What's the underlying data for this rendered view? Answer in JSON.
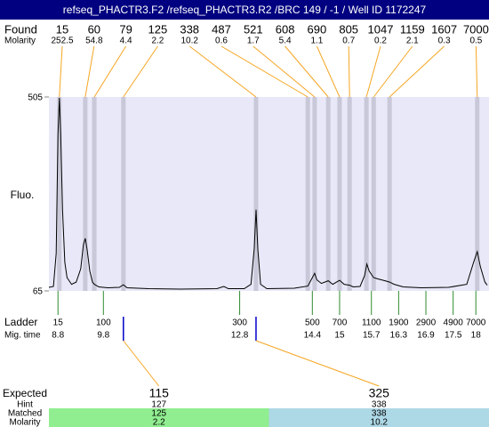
{
  "chart_data": {
    "type": "line",
    "title": "refseq_PHACTR3.F2 /refseq_PHACTR3.R2 /BRC 149 / -1 / Well ID 1172247",
    "found_label": "Found",
    "found_molarity_label": "Molarity",
    "ylabel": "Fluo.",
    "ylim": [
      65,
      505
    ],
    "yticks": [
      65,
      505
    ],
    "xlim": [
      8.6,
      18.25
    ],
    "color": "#000000",
    "x": [
      8.6,
      8.7,
      8.76,
      8.8,
      8.83,
      8.86,
      8.9,
      8.95,
      9.0,
      9.1,
      9.2,
      9.3,
      9.36,
      9.4,
      9.44,
      9.5,
      9.56,
      9.6,
      9.7,
      9.9,
      10.15,
      10.24,
      10.32,
      10.8,
      11.5,
      12.3,
      12.45,
      12.55,
      12.9,
      13.05,
      13.12,
      13.16,
      13.2,
      13.26,
      13.4,
      14.0,
      14.3,
      14.4,
      14.45,
      14.5,
      14.6,
      14.75,
      14.85,
      14.95,
      15.0,
      15.1,
      15.22,
      15.3,
      15.45,
      15.55,
      15.6,
      15.65,
      15.75,
      15.85,
      16.0,
      16.1,
      16.2,
      16.4,
      16.8,
      17.4,
      17.8,
      17.95,
      18.03,
      18.1,
      18.2,
      18.25
    ],
    "values": [
      73,
      75,
      150,
      420,
      503,
      420,
      250,
      130,
      95,
      80,
      85,
      115,
      170,
      184,
      160,
      110,
      85,
      80,
      74,
      72,
      73,
      79,
      72,
      70,
      69,
      70,
      75,
      70,
      70,
      80,
      160,
      249,
      160,
      80,
      70,
      71,
      76,
      95,
      105,
      90,
      82,
      88,
      80,
      86,
      89,
      80,
      78,
      74,
      75,
      100,
      126,
      110,
      95,
      92,
      88,
      85,
      80,
      74,
      72,
      73,
      80,
      130,
      154,
      120,
      85,
      78
    ],
    "peaks": [
      {
        "size": 15,
        "molarity": 252.5,
        "time": 8.83
      },
      {
        "size": 60,
        "molarity": 54.8,
        "time": 9.4
      },
      {
        "size": 79,
        "molarity": 4.4,
        "time": 9.6
      },
      {
        "size": 125,
        "molarity": 2.2,
        "time": 10.24
      },
      {
        "size": 338,
        "molarity": 10.2,
        "time": 13.16
      },
      {
        "size": 487,
        "molarity": 0.6,
        "time": 14.3
      },
      {
        "size": 521,
        "molarity": 1.7,
        "time": 14.45
      },
      {
        "size": 608,
        "molarity": 5.4,
        "time": 14.75
      },
      {
        "size": 690,
        "molarity": 1.1,
        "time": 15.0
      },
      {
        "size": 805,
        "molarity": 0.7,
        "time": 15.22
      },
      {
        "size": 1047,
        "molarity": 0.2,
        "time": 15.59
      },
      {
        "size": 1159,
        "molarity": 2.1,
        "time": 15.75
      },
      {
        "size": 1607,
        "molarity": 0.3,
        "time": 16.1
      },
      {
        "size": 7000,
        "molarity": 0.5,
        "time": 18.03
      }
    ],
    "ladder_label": "Ladder",
    "mig_time_label": "Mig. time",
    "ladder": [
      {
        "size": 15,
        "time": 8.8
      },
      {
        "size": 100,
        "time": 9.8
      },
      {
        "size": 300,
        "time": 12.8
      },
      {
        "size": 500,
        "time": 14.4
      },
      {
        "size": 700,
        "time": 15
      },
      {
        "size": 1100,
        "time": 15.7
      },
      {
        "size": 1900,
        "time": 16.3
      },
      {
        "size": 2900,
        "time": 16.9
      },
      {
        "size": 4900,
        "time": 17.5
      },
      {
        "size": 7000,
        "time": 18
      }
    ],
    "expected": {
      "header": "Expected",
      "hint_label": "Hint",
      "matched_label": "Matched",
      "molarity_label": "Molarity",
      "columns": [
        {
          "expected": 115,
          "hint": 127,
          "matched": 125,
          "molarity": 2.2,
          "color": "#90ee90"
        },
        {
          "expected": 325,
          "hint": 338,
          "matched": 338,
          "molarity": 10.2,
          "color": "#add8e6"
        }
      ]
    }
  }
}
